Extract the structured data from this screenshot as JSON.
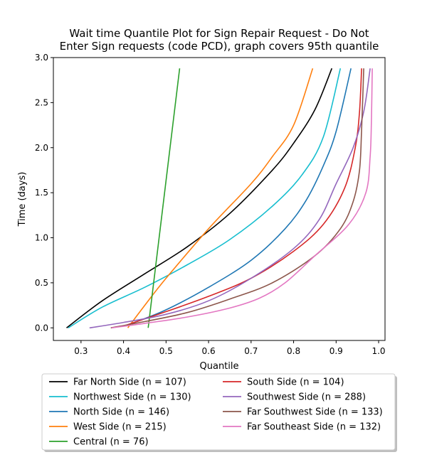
{
  "chart_data": {
    "type": "line",
    "title_lines": [
      "Wait time Quantile Plot for Sign Repair Request - Do Not",
      "Enter Sign  requests (code PCD), graph covers 95th quantile"
    ],
    "xlabel": "Quantile",
    "ylabel": "Time (days)",
    "xlim": [
      0.235,
      1.015
    ],
    "ylim": [
      -0.14,
      3.0
    ],
    "xticks": [
      0.3,
      0.4,
      0.5,
      0.6,
      0.7,
      0.8,
      0.9,
      1.0
    ],
    "xtick_labels": [
      "0.3",
      "0.4",
      "0.5",
      "0.6",
      "0.7",
      "0.8",
      "0.9",
      "1.0"
    ],
    "yticks": [
      0.0,
      0.5,
      1.0,
      1.5,
      2.0,
      2.5,
      3.0
    ],
    "ytick_labels": [
      "0.0",
      "0.5",
      "1.0",
      "1.5",
      "2.0",
      "2.5",
      "3.0"
    ],
    "grid": false,
    "legend_position": "below-plot",
    "series": [
      {
        "name": "Far North Side (n = 107)",
        "color": "#000000",
        "points": [
          [
            0.266,
            0.0
          ],
          [
            0.35,
            0.3
          ],
          [
            0.45,
            0.6
          ],
          [
            0.55,
            0.9
          ],
          [
            0.65,
            1.27
          ],
          [
            0.75,
            1.75
          ],
          [
            0.8,
            2.05
          ],
          [
            0.85,
            2.42
          ],
          [
            0.89,
            2.88
          ]
        ]
      },
      {
        "name": "Northwest Side (n = 130)",
        "color": "#17becf",
        "points": [
          [
            0.27,
            0.0
          ],
          [
            0.35,
            0.23
          ],
          [
            0.45,
            0.45
          ],
          [
            0.55,
            0.7
          ],
          [
            0.65,
            0.98
          ],
          [
            0.75,
            1.35
          ],
          [
            0.82,
            1.7
          ],
          [
            0.87,
            2.12
          ],
          [
            0.91,
            2.88
          ]
        ]
      },
      {
        "name": "North Side (n = 146)",
        "color": "#1f77b4",
        "points": [
          [
            0.42,
            0.05
          ],
          [
            0.5,
            0.2
          ],
          [
            0.6,
            0.45
          ],
          [
            0.7,
            0.75
          ],
          [
            0.78,
            1.1
          ],
          [
            0.83,
            1.42
          ],
          [
            0.87,
            1.8
          ],
          [
            0.9,
            2.18
          ],
          [
            0.935,
            2.88
          ]
        ]
      },
      {
        "name": "West Side (n = 215)",
        "color": "#ff7f0e",
        "points": [
          [
            0.41,
            0.0
          ],
          [
            0.45,
            0.25
          ],
          [
            0.5,
            0.55
          ],
          [
            0.6,
            1.1
          ],
          [
            0.7,
            1.6
          ],
          [
            0.75,
            1.9
          ],
          [
            0.8,
            2.25
          ],
          [
            0.845,
            2.88
          ]
        ]
      },
      {
        "name": "Central (n = 76)",
        "color": "#2ca02c",
        "points": [
          [
            0.458,
            0.0
          ],
          [
            0.532,
            2.88
          ]
        ]
      },
      {
        "name": "South Side (n = 104)",
        "color": "#d62728",
        "points": [
          [
            0.4,
            0.02
          ],
          [
            0.5,
            0.18
          ],
          [
            0.6,
            0.35
          ],
          [
            0.7,
            0.55
          ],
          [
            0.8,
            0.85
          ],
          [
            0.87,
            1.15
          ],
          [
            0.92,
            1.55
          ],
          [
            0.945,
            2.0
          ],
          [
            0.955,
            2.4
          ],
          [
            0.96,
            2.88
          ]
        ]
      },
      {
        "name": "Southwest Side (n = 288)",
        "color": "#9467bd",
        "points": [
          [
            0.32,
            0.0
          ],
          [
            0.4,
            0.06
          ],
          [
            0.5,
            0.15
          ],
          [
            0.6,
            0.3
          ],
          [
            0.7,
            0.55
          ],
          [
            0.8,
            0.88
          ],
          [
            0.86,
            1.2
          ],
          [
            0.9,
            1.6
          ],
          [
            0.94,
            2.0
          ],
          [
            0.965,
            2.4
          ],
          [
            0.98,
            2.88
          ]
        ]
      },
      {
        "name": "Far Southwest Side (n = 133)",
        "color": "#8c564b",
        "points": [
          [
            0.37,
            0.0
          ],
          [
            0.45,
            0.07
          ],
          [
            0.55,
            0.17
          ],
          [
            0.65,
            0.32
          ],
          [
            0.75,
            0.5
          ],
          [
            0.85,
            0.8
          ],
          [
            0.91,
            1.1
          ],
          [
            0.94,
            1.4
          ],
          [
            0.955,
            1.75
          ],
          [
            0.96,
            2.2
          ],
          [
            0.965,
            2.88
          ]
        ]
      },
      {
        "name": "Far Southeast Side (n = 132)",
        "color": "#e377c2",
        "points": [
          [
            0.372,
            0.0
          ],
          [
            0.45,
            0.05
          ],
          [
            0.55,
            0.12
          ],
          [
            0.65,
            0.22
          ],
          [
            0.72,
            0.33
          ],
          [
            0.78,
            0.5
          ],
          [
            0.85,
            0.8
          ],
          [
            0.93,
            1.15
          ],
          [
            0.97,
            1.5
          ],
          [
            0.98,
            1.9
          ],
          [
            0.983,
            2.3
          ],
          [
            0.985,
            2.88
          ]
        ]
      }
    ],
    "legend_columns": [
      [
        0,
        1,
        2,
        3,
        4
      ],
      [
        5,
        6,
        7,
        8
      ]
    ]
  }
}
